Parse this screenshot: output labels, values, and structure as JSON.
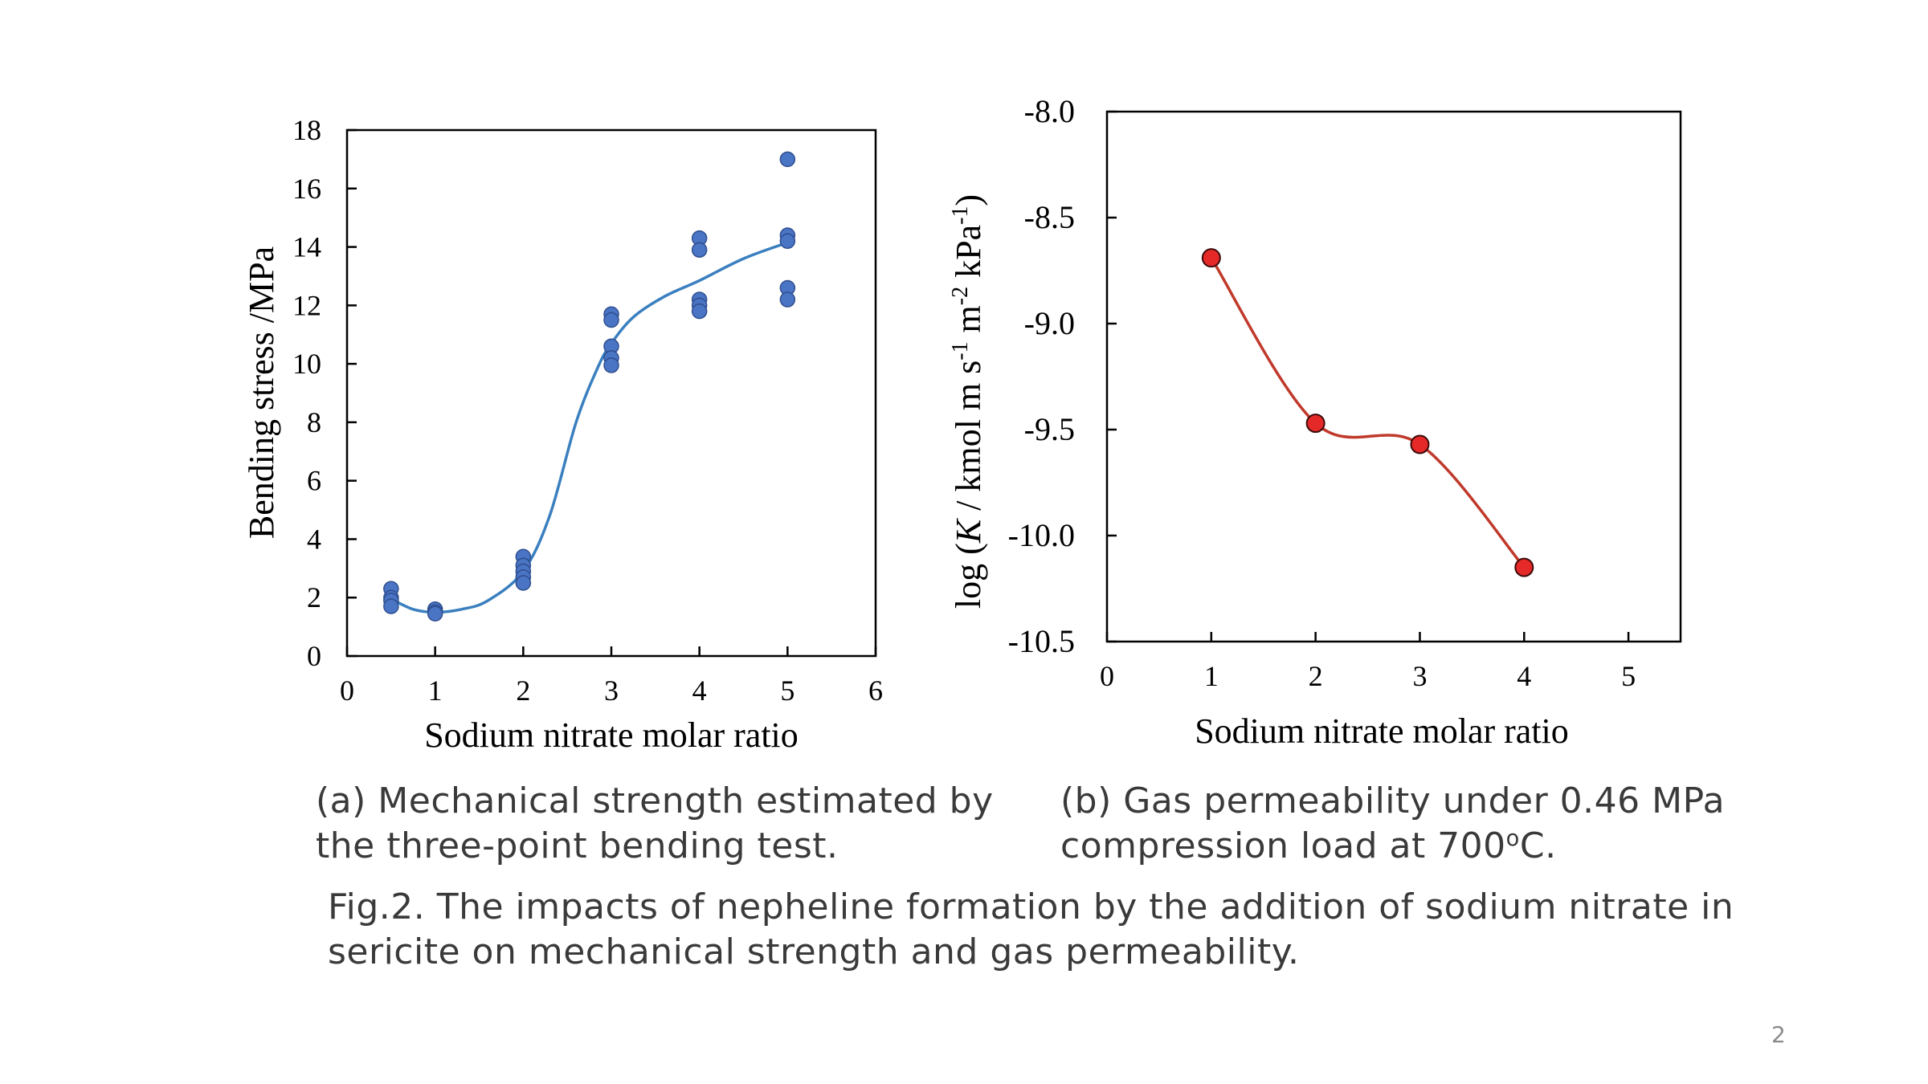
{
  "chart_data": [
    {
      "type": "scatter",
      "xlabel": "Sodium nitrate molar ratio",
      "ylabel": "Bending stress /MPa",
      "xlim": [
        0,
        6
      ],
      "ylim": [
        0,
        18
      ],
      "x_ticks": [
        "0",
        "1",
        "2",
        "3",
        "4",
        "5",
        "6"
      ],
      "y_ticks": [
        "0",
        "2",
        "4",
        "6",
        "8",
        "10",
        "12",
        "14",
        "16",
        "18"
      ],
      "marker_color": "#4a74c4",
      "line_color": "#3a7fbf",
      "grid": false,
      "points": [
        {
          "x": 0.5,
          "y": 2.3
        },
        {
          "x": 0.5,
          "y": 2.0
        },
        {
          "x": 0.5,
          "y": 1.9
        },
        {
          "x": 0.5,
          "y": 1.7
        },
        {
          "x": 1,
          "y": 1.6
        },
        {
          "x": 1,
          "y": 1.5
        },
        {
          "x": 1,
          "y": 1.45
        },
        {
          "x": 2,
          "y": 3.4
        },
        {
          "x": 2,
          "y": 3.1
        },
        {
          "x": 2,
          "y": 2.9
        },
        {
          "x": 2,
          "y": 2.7
        },
        {
          "x": 2,
          "y": 2.5
        },
        {
          "x": 3,
          "y": 11.7
        },
        {
          "x": 3,
          "y": 11.5
        },
        {
          "x": 3,
          "y": 10.6
        },
        {
          "x": 3,
          "y": 10.2
        },
        {
          "x": 3,
          "y": 9.95
        },
        {
          "x": 4,
          "y": 14.3
        },
        {
          "x": 4,
          "y": 13.9
        },
        {
          "x": 4,
          "y": 12.2
        },
        {
          "x": 4,
          "y": 12.0
        },
        {
          "x": 4,
          "y": 11.8
        },
        {
          "x": 5,
          "y": 17.0
        },
        {
          "x": 5,
          "y": 14.4
        },
        {
          "x": 5,
          "y": 14.2
        },
        {
          "x": 5,
          "y": 12.6
        },
        {
          "x": 5,
          "y": 12.2
        }
      ],
      "fit_curve": [
        {
          "x": 0.5,
          "y": 1.95
        },
        {
          "x": 0.75,
          "y": 1.6
        },
        {
          "x": 1.0,
          "y": 1.5
        },
        {
          "x": 1.3,
          "y": 1.6
        },
        {
          "x": 1.6,
          "y": 1.9
        },
        {
          "x": 2.0,
          "y": 2.9
        },
        {
          "x": 2.3,
          "y": 4.8
        },
        {
          "x": 2.6,
          "y": 8.0
        },
        {
          "x": 2.85,
          "y": 9.9
        },
        {
          "x": 3.0,
          "y": 10.7
        },
        {
          "x": 3.25,
          "y": 11.6
        },
        {
          "x": 3.6,
          "y": 12.3
        },
        {
          "x": 4.0,
          "y": 12.85
        },
        {
          "x": 4.5,
          "y": 13.6
        },
        {
          "x": 5.0,
          "y": 14.15
        }
      ]
    },
    {
      "type": "line",
      "xlabel": "Sodium nitrate molar ratio",
      "ylabel_parts": {
        "prefix": "log (",
        "italic": "K",
        "middle1": " / kmol m s",
        "exp1": "-1",
        "middle2": " m",
        "exp2": "-2",
        "middle3": " kPa",
        "exp3": "-1",
        "suffix": ")"
      },
      "xlim": [
        0,
        5.5
      ],
      "ylim": [
        -10.5,
        -8.0
      ],
      "x_ticks": [
        "0",
        "1",
        "2",
        "3",
        "4",
        "5"
      ],
      "y_ticks": [
        "-8.0",
        "-8.5",
        "-9.0",
        "-9.5",
        "-10.0",
        "-10.5"
      ],
      "marker_color": "#e52929",
      "line_color": "#c0392b",
      "grid": false,
      "points": [
        {
          "x": 1,
          "y": -8.69
        },
        {
          "x": 2,
          "y": -9.47
        },
        {
          "x": 3,
          "y": -9.57
        },
        {
          "x": 4,
          "y": -10.15
        }
      ]
    }
  ],
  "captions": {
    "a_line1": "(a) Mechanical strength estimated by",
    "a_line2": "the three-point bending test.",
    "b_line1": "(b) Gas permeability under 0.46 MPa",
    "b_line2_pre": "compression load at 700",
    "b_line2_sup": "o",
    "b_line2_post": "C.",
    "fig_line1": "Fig.2. The impacts of nepheline formation by the addition of sodium nitrate in",
    "fig_line2": "sericite on mechanical strength and gas permeability."
  },
  "page_number": "2"
}
